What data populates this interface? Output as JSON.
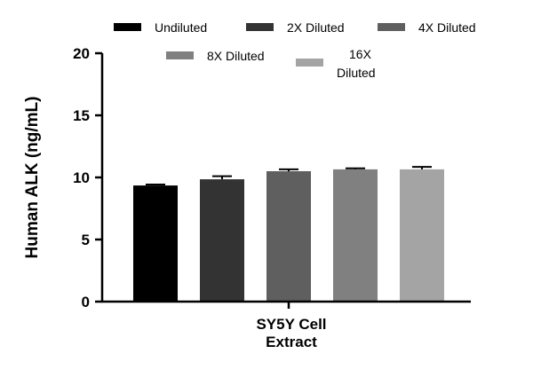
{
  "chart_data": {
    "type": "bar",
    "title": "",
    "xlabel": "",
    "ylabel": "Human ALK (ng/mL)",
    "ylim": [
      0,
      20
    ],
    "yticks": [
      0,
      5,
      10,
      15,
      20
    ],
    "categories": [
      "SY5Y Cell Extract"
    ],
    "category_label_lines": [
      "SY5Y Cell",
      "Extract"
    ],
    "legend_position": "top",
    "grid": false,
    "series": [
      {
        "name": "Undiluted",
        "legend_lines": [
          "Undiluted"
        ],
        "values": [
          9.35
        ],
        "error": [
          0.08
        ],
        "color": "#000000"
      },
      {
        "name": "2X Diluted",
        "legend_lines": [
          "2X Diluted"
        ],
        "values": [
          9.85
        ],
        "error": [
          0.25
        ],
        "color": "#333333"
      },
      {
        "name": "4X Diluted",
        "legend_lines": [
          "4X Diluted"
        ],
        "values": [
          10.5
        ],
        "error": [
          0.15
        ],
        "color": "#5f5f5f"
      },
      {
        "name": "8X Diluted",
        "legend_lines": [
          "8X Diluted"
        ],
        "values": [
          10.65
        ],
        "error": [
          0.08
        ],
        "color": "#808080"
      },
      {
        "name": "16X Diluted",
        "legend_lines": [
          "16X",
          "Diluted"
        ],
        "values": [
          10.65
        ],
        "error": [
          0.2
        ],
        "color": "#a4a4a4"
      }
    ]
  }
}
